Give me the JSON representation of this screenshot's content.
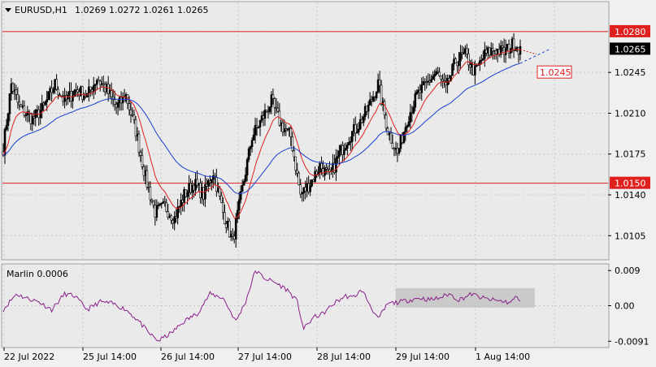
{
  "header": {
    "symbol": "EURUSD,H1",
    "ohlc": "1.0269 1.0272 1.0261 1.0265",
    "collapse_icon": "triangle-down-icon"
  },
  "colors": {
    "bull_candle": "#000000",
    "bear_candle": "#ffffff",
    "grid": "#c8c8c8",
    "fast_ma": "#e0201e",
    "slow_ma": "#1a3fd0",
    "level_line": "#e0201e",
    "oscillator": "#8b1f8b",
    "consolidation_box": "#b4b4b4"
  },
  "chart_data": [
    {
      "type": "candlestick",
      "symbol": "EURUSD",
      "timeframe": "H1",
      "ylim": [
        1.0085,
        1.0305
      ],
      "y_ticks": [
        "1.0280",
        "1.0245",
        "1.0210",
        "1.0175",
        "1.0140",
        "1.0105"
      ],
      "x_ticks": [
        "22 Jul 2022",
        "25 Jul 14:00",
        "26 Jul 14:00",
        "27 Jul 14:00",
        "28 Jul 14:00",
        "29 Jul 14:00",
        "1 Aug 14:00"
      ],
      "last_price": "1.0265",
      "horizontal_levels": [
        {
          "value": 1.028,
          "label": "1.0280"
        },
        {
          "value": 1.015,
          "label": "1.0150"
        }
      ],
      "projection_label": {
        "value": 1.0245,
        "label": "1.0245"
      },
      "close_anchors": [
        [
          0,
          1.018
        ],
        [
          5,
          1.0235
        ],
        [
          10,
          1.0215
        ],
        [
          18,
          1.0205
        ],
        [
          25,
          1.0215
        ],
        [
          32,
          1.0235
        ],
        [
          38,
          1.022
        ],
        [
          45,
          1.023
        ],
        [
          52,
          1.0225
        ],
        [
          58,
          1.024
        ],
        [
          64,
          1.023
        ],
        [
          70,
          1.0215
        ],
        [
          76,
          1.0225
        ],
        [
          82,
          1.0195
        ],
        [
          88,
          1.0155
        ],
        [
          94,
          1.0125
        ],
        [
          100,
          1.013
        ],
        [
          106,
          1.012
        ],
        [
          112,
          1.014
        ],
        [
          118,
          1.015
        ],
        [
          124,
          1.014
        ],
        [
          130,
          1.016
        ],
        [
          136,
          1.0125
        ],
        [
          142,
          1.01
        ],
        [
          148,
          1.0145
        ],
        [
          154,
          1.019
        ],
        [
          160,
          1.0205
        ],
        [
          166,
          1.022
        ],
        [
          172,
          1.02
        ],
        [
          178,
          1.019
        ],
        [
          184,
          1.014
        ],
        [
          190,
          1.015
        ],
        [
          196,
          1.0165
        ],
        [
          202,
          1.0155
        ],
        [
          208,
          1.0175
        ],
        [
          214,
          1.019
        ],
        [
          220,
          1.02
        ],
        [
          226,
          1.0215
        ],
        [
          232,
          1.0235
        ],
        [
          238,
          1.0195
        ],
        [
          244,
          1.0175
        ],
        [
          250,
          1.0205
        ],
        [
          256,
          1.0225
        ],
        [
          262,
          1.0235
        ],
        [
          268,
          1.0245
        ],
        [
          274,
          1.023
        ],
        [
          280,
          1.0255
        ],
        [
          286,
          1.026
        ],
        [
          292,
          1.0245
        ],
        [
          298,
          1.026
        ],
        [
          304,
          1.0265
        ],
        [
          310,
          1.0262
        ],
        [
          316,
          1.027
        ],
        [
          320,
          1.0265
        ]
      ],
      "overlays": [
        "fast moving average (red)",
        "slow moving average (blue)",
        "dashed projection (blue)"
      ]
    },
    {
      "type": "line",
      "title": "Marlin 0.0006",
      "ylim": [
        -0.0105,
        0.0105
      ],
      "y_ticks": [
        "0.009",
        "0.00",
        "-0.0091"
      ],
      "anchors": [
        [
          0,
          -0.001
        ],
        [
          8,
          0.003
        ],
        [
          14,
          0.002
        ],
        [
          22,
          0.001
        ],
        [
          30,
          -0.001
        ],
        [
          38,
          0.003
        ],
        [
          44,
          0.0025
        ],
        [
          52,
          -0.001
        ],
        [
          60,
          0.001
        ],
        [
          68,
          0.0005
        ],
        [
          76,
          -0.001
        ],
        [
          84,
          -0.004
        ],
        [
          90,
          -0.007
        ],
        [
          96,
          -0.009
        ],
        [
          104,
          -0.007
        ],
        [
          112,
          -0.004
        ],
        [
          120,
          -0.002
        ],
        [
          128,
          0.003
        ],
        [
          136,
          0.002
        ],
        [
          144,
          -0.004
        ],
        [
          150,
          0.001
        ],
        [
          156,
          0.009
        ],
        [
          162,
          0.007
        ],
        [
          168,
          0.006
        ],
        [
          176,
          0.004
        ],
        [
          182,
          0.001
        ],
        [
          186,
          -0.006
        ],
        [
          192,
          -0.003
        ],
        [
          198,
          -0.002
        ],
        [
          206,
          0.001
        ],
        [
          212,
          0.0025
        ],
        [
          216,
          0.002
        ],
        [
          222,
          0.004
        ],
        [
          226,
          0.001
        ],
        [
          232,
          -0.0035
        ],
        [
          238,
          0.0005
        ],
        [
          246,
          0.001
        ],
        [
          252,
          0.0015
        ],
        [
          258,
          0.002
        ],
        [
          264,
          0.0015
        ],
        [
          270,
          0.002
        ],
        [
          276,
          0.003
        ],
        [
          282,
          0.0015
        ],
        [
          290,
          0.003
        ],
        [
          296,
          0.002
        ],
        [
          302,
          0.0015
        ],
        [
          308,
          0.0012
        ],
        [
          314,
          0.0008
        ],
        [
          318,
          0.0025
        ],
        [
          320,
          0.0006
        ]
      ],
      "consolidation_box": {
        "x": [
          244,
          320
        ],
        "y": [
          -0.0005,
          0.0045
        ]
      }
    }
  ]
}
